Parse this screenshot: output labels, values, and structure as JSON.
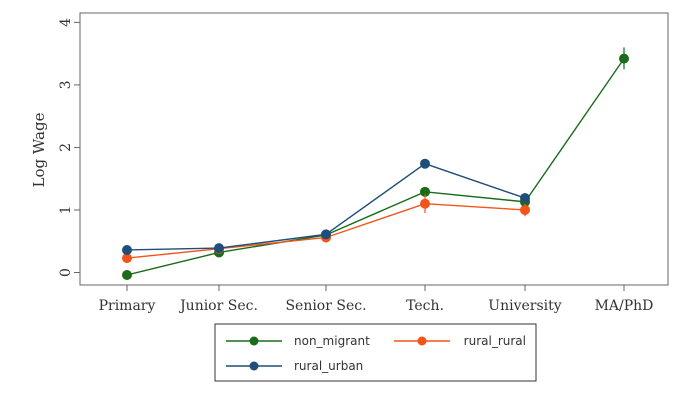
{
  "chart_data": {
    "type": "line",
    "categories": [
      "Primary",
      "Junior Sec.",
      "Senior Sec.",
      "Tech.",
      "University",
      "MA/PhD"
    ],
    "ylabel": "Log Wage",
    "xlabel": "",
    "ylim": [
      -0.2,
      4.15
    ],
    "yticks": [
      0,
      1,
      2,
      3,
      4
    ],
    "grid": false,
    "legend_position": "bottom",
    "series": [
      {
        "name": "non_migrant",
        "color": "#1a6b1a",
        "values": [
          -0.04,
          0.32,
          0.6,
          1.29,
          1.13,
          3.42
        ],
        "ci": [
          [
            -0.08,
            0.0
          ],
          [
            0.29,
            0.35
          ],
          [
            0.57,
            0.63
          ],
          [
            1.25,
            1.33
          ],
          [
            1.09,
            1.17
          ],
          [
            3.25,
            3.6
          ]
        ]
      },
      {
        "name": "rural_rural",
        "color": "#f2541b",
        "values": [
          0.23,
          0.38,
          0.56,
          1.1,
          1.0,
          null
        ],
        "ci": [
          [
            0.19,
            0.27
          ],
          [
            0.35,
            0.41
          ],
          [
            0.52,
            0.6
          ],
          [
            0.95,
            1.25
          ],
          [
            0.9,
            1.1
          ],
          null
        ]
      },
      {
        "name": "rural_urban",
        "color": "#1f4e79",
        "values": [
          0.36,
          0.39,
          0.61,
          1.74,
          1.19,
          null
        ],
        "ci": [
          [
            0.33,
            0.39
          ],
          [
            0.36,
            0.42
          ],
          [
            0.58,
            0.64
          ],
          [
            1.67,
            1.81
          ],
          [
            1.11,
            1.27
          ],
          null
        ]
      }
    ]
  }
}
